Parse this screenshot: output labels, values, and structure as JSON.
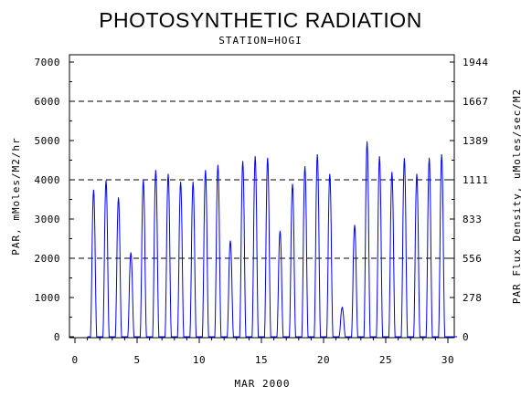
{
  "chart_data": {
    "type": "line",
    "title": "PHOTOSYNTHETIC RADIATION",
    "subtitle": "STATION=HOGI",
    "xlabel": "MAR 2000",
    "ylabel": "PAR, mMoles/M2/hr",
    "y2label": "PAR Flux Density, uMoles/sec/M2",
    "xlim": [
      0,
      30
    ],
    "ylim": [
      0,
      7000
    ],
    "xticks": [
      0,
      5,
      10,
      15,
      20,
      25,
      30
    ],
    "yticks": [
      0,
      1000,
      2000,
      3000,
      4000,
      5000,
      6000,
      7000
    ],
    "y2ticks": [
      "0",
      "278",
      "556",
      "833",
      "1111",
      "1389",
      "1667",
      "1944"
    ],
    "gridlines_y": [
      2000,
      4000,
      6000
    ],
    "grid_style": "dashed",
    "line_color": "#0000ff",
    "daily_peaks": {
      "day": [
        1,
        2,
        3,
        4,
        5,
        6,
        7,
        8,
        9,
        10,
        11,
        12,
        13,
        14,
        15,
        16,
        17,
        18,
        19,
        20,
        21,
        22,
        23,
        24,
        25,
        26,
        27,
        28,
        29,
        30
      ],
      "peak": [
        3750,
        3990,
        3550,
        2150,
        4000,
        4250,
        4150,
        3950,
        3950,
        4250,
        4380,
        2450,
        4480,
        4600,
        4560,
        2700,
        3900,
        4350,
        4650,
        4150,
        750,
        2850,
        4980,
        4600,
        4200,
        4550,
        4150,
        4560,
        4650,
        0
      ]
    }
  }
}
